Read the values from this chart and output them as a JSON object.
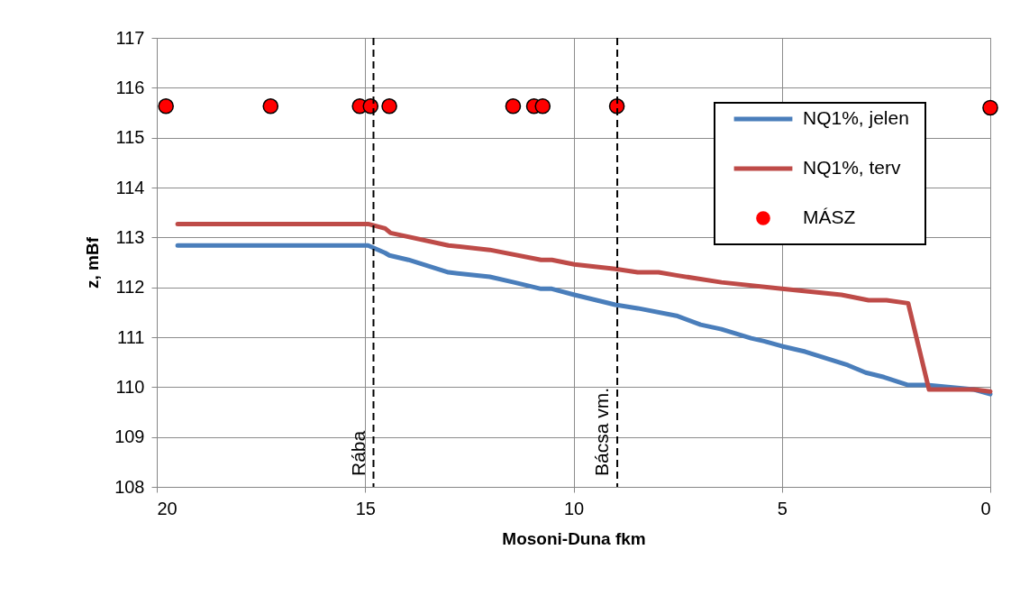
{
  "chart_data": {
    "type": "line",
    "xlabel": "Mosoni-Duna  fkm",
    "ylabel": "z, mBf",
    "xlim": [
      20,
      0
    ],
    "xticks": [
      20,
      15,
      10,
      5,
      0
    ],
    "ylim": [
      108,
      117
    ],
    "yticks": [
      108,
      109,
      110,
      111,
      112,
      113,
      114,
      115,
      116,
      117
    ],
    "grid": true,
    "legend": "top right",
    "series": [
      {
        "name": "NQ1%, jelen",
        "color": "#4a7ebb",
        "x": [
          19.5,
          14.93,
          14.52,
          14.42,
          13.96,
          13.0,
          12.01,
          11.43,
          10.78,
          10.52,
          9.98,
          9.0,
          8.46,
          7.53,
          6.95,
          6.45,
          5.74,
          5.43,
          5.0,
          4.44,
          3.42,
          2.99,
          2.55,
          1.97,
          1.47,
          0.39,
          0
        ],
        "values": [
          112.84,
          112.84,
          112.69,
          112.64,
          112.55,
          112.3,
          112.21,
          112.1,
          111.97,
          111.97,
          111.85,
          111.65,
          111.58,
          111.43,
          111.25,
          111.16,
          110.98,
          110.92,
          110.82,
          110.71,
          110.44,
          110.29,
          110.2,
          110.04,
          110.04,
          109.95,
          109.86
        ]
      },
      {
        "name": "NQ1%, terv",
        "color": "#be4b48",
        "x": [
          19.5,
          14.93,
          14.52,
          14.39,
          13.0,
          12.01,
          10.78,
          10.52,
          9.98,
          9.0,
          8.46,
          7.96,
          7.53,
          6.45,
          5.0,
          3.57,
          2.92,
          2.49,
          1.97,
          1.47,
          0.39,
          0
        ],
        "values": [
          113.27,
          113.27,
          113.18,
          113.09,
          112.84,
          112.75,
          112.55,
          112.55,
          112.46,
          112.37,
          112.3,
          112.3,
          112.24,
          112.1,
          111.97,
          111.85,
          111.74,
          111.74,
          111.68,
          109.95,
          109.95,
          109.91
        ]
      },
      {
        "name": "MÁSZ",
        "type": "scatter",
        "marker": "circle",
        "color": "#ff0000",
        "x": [
          19.78,
          17.27,
          15.13,
          14.87,
          14.42,
          11.45,
          10.95,
          10.74,
          8.96,
          0.0
        ],
        "values": [
          115.63,
          115.63,
          115.63,
          115.63,
          115.63,
          115.63,
          115.63,
          115.63,
          115.63,
          115.6
        ]
      }
    ],
    "ref_lines": [
      {
        "axis": "x",
        "value": 14.8,
        "label": "Rába",
        "color": "#000000",
        "line_style": "dashed"
      },
      {
        "axis": "x",
        "value": 8.95,
        "label": "Bácsa vm.",
        "color": "#000000",
        "line_style": "dashed"
      }
    ]
  }
}
